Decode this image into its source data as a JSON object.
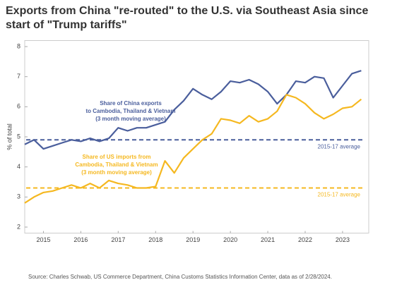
{
  "chart_data": {
    "type": "line",
    "title": "Exports from China \"re-routed\" to the U.S. via Southeast Asia since start of \"Trump tariffs\"",
    "y_label": "% of total",
    "x": [
      2015.0,
      2015.25,
      2015.5,
      2015.75,
      2016.0,
      2016.25,
      2016.5,
      2016.75,
      2017.0,
      2017.25,
      2017.5,
      2017.75,
      2018.0,
      2018.25,
      2018.5,
      2018.75,
      2019.0,
      2019.25,
      2019.5,
      2019.75,
      2020.0,
      2020.25,
      2020.5,
      2020.75,
      2021.0,
      2021.25,
      2021.5,
      2021.75,
      2022.0,
      2022.25,
      2022.5,
      2022.75,
      2023.0,
      2023.25,
      2023.5,
      2023.75,
      2024.0
    ],
    "series": [
      {
        "color": "#4a5e9c",
        "values": [
          4.75,
          4.9,
          4.6,
          4.7,
          4.8,
          4.9,
          4.85,
          4.95,
          4.85,
          4.95,
          5.3,
          5.2,
          5.3,
          5.3,
          5.4,
          5.5,
          5.9,
          6.2,
          6.6,
          6.4,
          6.25,
          6.5,
          6.85,
          6.8,
          6.9,
          6.75,
          6.5,
          6.1,
          6.4,
          6.85,
          6.8,
          7.0,
          6.95,
          6.3,
          6.7,
          7.1,
          7.2
        ]
      },
      {
        "color": "#f5b820",
        "values": [
          2.8,
          3.0,
          3.15,
          3.2,
          3.3,
          3.4,
          3.3,
          3.45,
          3.3,
          3.55,
          3.45,
          3.4,
          3.3,
          3.3,
          3.35,
          4.2,
          3.8,
          4.3,
          4.6,
          4.9,
          5.1,
          5.6,
          5.55,
          5.45,
          5.7,
          5.5,
          5.6,
          5.85,
          6.4,
          6.3,
          6.1,
          5.8,
          5.6,
          5.75,
          5.95,
          6.0,
          6.25
        ]
      }
    ],
    "annotations": [
      {
        "lines": [
          "Share of China exports",
          "to Cambodia, Thailand & Vietnam",
          "(3 month moving average)"
        ],
        "color": "#4a5e9c"
      },
      {
        "lines": [
          "Share of US imports from",
          "Cambodia, Thailand & Vietnam",
          "(3 month moving average)"
        ],
        "color": "#f5b820"
      }
    ],
    "reference_lines": [
      {
        "value": 4.9,
        "label": "2015-17 average",
        "color": "#4a5e9c"
      },
      {
        "value": 3.3,
        "label": "2015-17 average",
        "color": "#f5b820"
      }
    ],
    "xlim": [
      2015,
      2024.2
    ],
    "xticks": [
      {
        "value": 2015.5,
        "label": "2015"
      },
      {
        "value": 2016.5,
        "label": "2016"
      },
      {
        "value": 2017.5,
        "label": "2017"
      },
      {
        "value": 2018.5,
        "label": "2018"
      },
      {
        "value": 2019.5,
        "label": "2019"
      },
      {
        "value": 2020.5,
        "label": "2020"
      },
      {
        "value": 2021.5,
        "label": "2021"
      },
      {
        "value": 2022.5,
        "label": "2022"
      },
      {
        "value": 2023.5,
        "label": "2023"
      }
    ],
    "ylim": [
      1.8,
      8.2
    ],
    "yticks": [
      2,
      3,
      4,
      5,
      6,
      7,
      8
    ],
    "source": "Source: Charles Schwab, US Commerce Department, China Customs Statistics Information Center, data as of 2/28/2024."
  }
}
